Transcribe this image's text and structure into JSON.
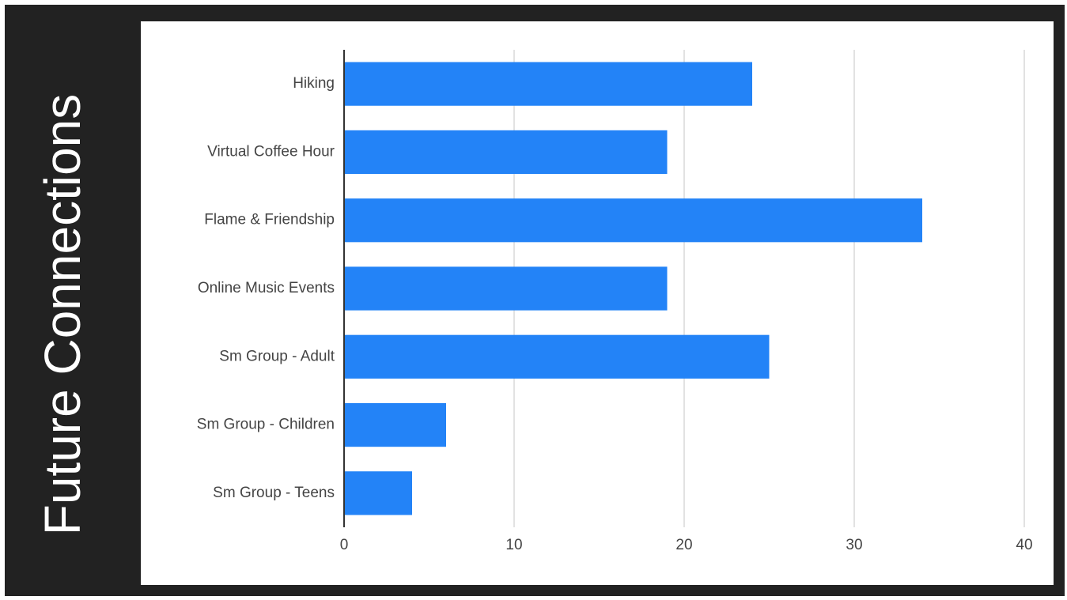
{
  "slide": {
    "title": "Future Connections"
  },
  "colors": {
    "background": "#222222",
    "bar": "#2383F7",
    "gridline": "#D9D9D9",
    "axis": "#333333",
    "text": "#444444"
  },
  "chart_data": {
    "type": "bar",
    "orientation": "horizontal",
    "title": "",
    "xlabel": "",
    "ylabel": "",
    "categories": [
      "Hiking",
      "Virtual Coffee Hour",
      "Flame & Friendship",
      "Online Music Events",
      "Sm Group - Adult",
      "Sm Group - Children",
      "Sm Group - Teens"
    ],
    "values": [
      24,
      19,
      34,
      19,
      25,
      6,
      4
    ],
    "xlim": [
      0,
      40
    ],
    "xticks": [
      0,
      10,
      20,
      30,
      40
    ],
    "xtick_labels": [
      "0",
      "10",
      "20",
      "30",
      "40"
    ],
    "grid": "vertical",
    "legend": "none"
  }
}
